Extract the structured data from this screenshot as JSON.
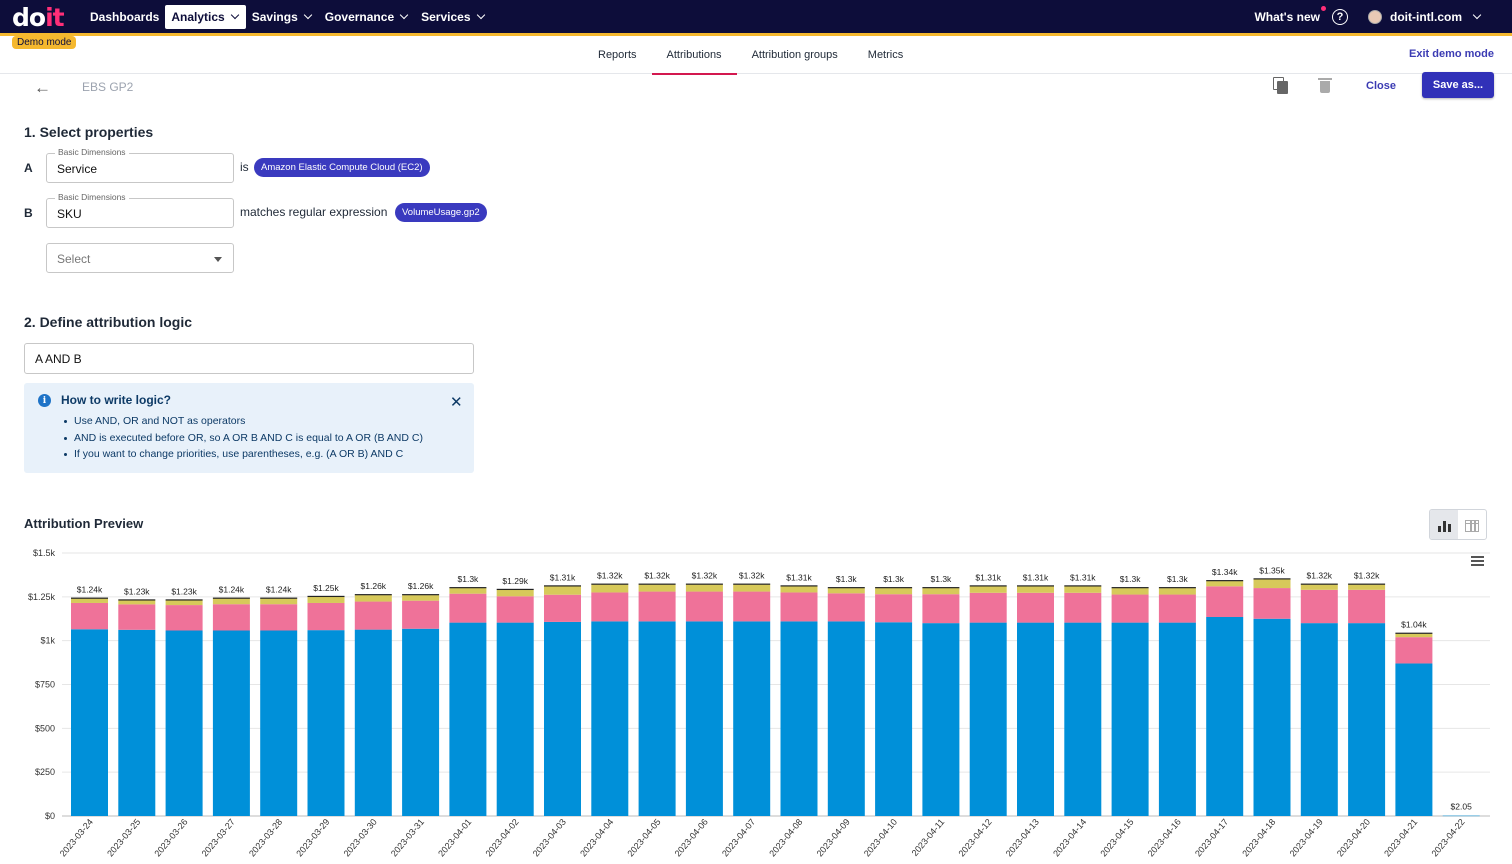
{
  "brand": {
    "logo_main": "do",
    "logo_accent": "it"
  },
  "topnav": {
    "items": [
      {
        "label": "Dashboards",
        "dropdown": false
      },
      {
        "label": "Analytics",
        "dropdown": true,
        "active": true
      },
      {
        "label": "Savings",
        "dropdown": true
      },
      {
        "label": "Governance",
        "dropdown": true
      },
      {
        "label": "Services",
        "dropdown": true
      }
    ],
    "whats_new": "What's new",
    "help_icon": "help-circle-icon",
    "account": "doit-intl.com"
  },
  "demo_badge": "Demo mode",
  "subtabs": {
    "items": [
      "Reports",
      "Attributions",
      "Attribution groups",
      "Metrics"
    ],
    "active": "Attributions",
    "exit_demo": "Exit demo mode"
  },
  "header": {
    "title": "EBS GP2",
    "close": "Close",
    "save_as": "Save as..."
  },
  "step1": {
    "title": "1. Select properties",
    "rows": [
      {
        "letter": "A",
        "legend": "Basic Dimensions",
        "value": "Service",
        "operator": "is",
        "chip": "Amazon Elastic Compute Cloud (EC2)"
      },
      {
        "letter": "B",
        "legend": "Basic Dimensions",
        "value": "SKU",
        "operator": "matches regular expression",
        "chip": "VolumeUsage.gp2"
      }
    ],
    "select_placeholder": "Select"
  },
  "step2": {
    "title": "2. Define attribution logic",
    "logic": "A AND B",
    "info_title": "How to write logic?",
    "info_items": [
      "Use AND, OR and NOT as operators",
      "AND is executed before OR, so A OR B AND C is equal to A OR (B AND C)",
      "If you want to change priorities, use parentheses, e.g. (A OR B) AND C"
    ]
  },
  "preview": {
    "title": "Attribution Preview"
  },
  "colors": {
    "nav_bg": "#0d0d3a",
    "accent": "#f5b82e",
    "primary": "#3131b8",
    "tab_underline": "#d3184f"
  },
  "chart_data": {
    "type": "bar",
    "stacked": true,
    "categories": [
      "2023-03-24",
      "2023-03-25",
      "2023-03-26",
      "2023-03-27",
      "2023-03-28",
      "2023-03-29",
      "2023-03-30",
      "2023-03-31",
      "2023-04-01",
      "2023-04-02",
      "2023-04-03",
      "2023-04-04",
      "2023-04-05",
      "2023-04-06",
      "2023-04-07",
      "2023-04-08",
      "2023-04-09",
      "2023-04-10",
      "2023-04-11",
      "2023-04-12",
      "2023-04-13",
      "2023-04-14",
      "2023-04-15",
      "2023-04-16",
      "2023-04-17",
      "2023-04-18",
      "2023-04-19",
      "2023-04-20",
      "2023-04-21",
      "2023-04-22"
    ],
    "series": [
      {
        "color": "#0090d9",
        "values": [
          1065,
          1062,
          1058,
          1058,
          1058,
          1060,
          1063,
          1068,
          1103,
          1103,
          1107,
          1110,
          1110,
          1110,
          1110,
          1110,
          1110,
          1105,
          1100,
          1103,
          1103,
          1103,
          1103,
          1103,
          1135,
          1125,
          1100,
          1100,
          870,
          2.05
        ]
      },
      {
        "color": "#ef7299",
        "values": [
          150,
          145,
          145,
          150,
          150,
          155,
          160,
          160,
          165,
          150,
          155,
          165,
          170,
          170,
          170,
          165,
          160,
          160,
          165,
          170,
          170,
          170,
          160,
          160,
          175,
          175,
          190,
          190,
          150,
          0
        ]
      },
      {
        "color": "#d7c95a",
        "values": [
          25,
          23,
          27,
          32,
          32,
          35,
          37,
          32,
          32,
          37,
          48,
          45,
          40,
          40,
          40,
          35,
          30,
          35,
          35,
          37,
          37,
          37,
          37,
          37,
          30,
          50,
          30,
          30,
          20,
          0
        ]
      }
    ],
    "totals": [
      "$1.24k",
      "$1.23k",
      "$1.23k",
      "$1.24k",
      "$1.24k",
      "$1.25k",
      "$1.26k",
      "$1.26k",
      "$1.3k",
      "$1.29k",
      "$1.31k",
      "$1.32k",
      "$1.32k",
      "$1.32k",
      "$1.32k",
      "$1.31k",
      "$1.3k",
      "$1.3k",
      "$1.3k",
      "$1.31k",
      "$1.31k",
      "$1.31k",
      "$1.3k",
      "$1.3k",
      "$1.34k",
      "$1.35k",
      "$1.32k",
      "$1.32k",
      "$1.04k",
      "$2.05"
    ],
    "yticks": [
      "$0",
      "$250",
      "$500",
      "$750",
      "$1k",
      "$1.25k",
      "$1.5k"
    ],
    "ylim": [
      0,
      1500
    ],
    "grid": true
  }
}
